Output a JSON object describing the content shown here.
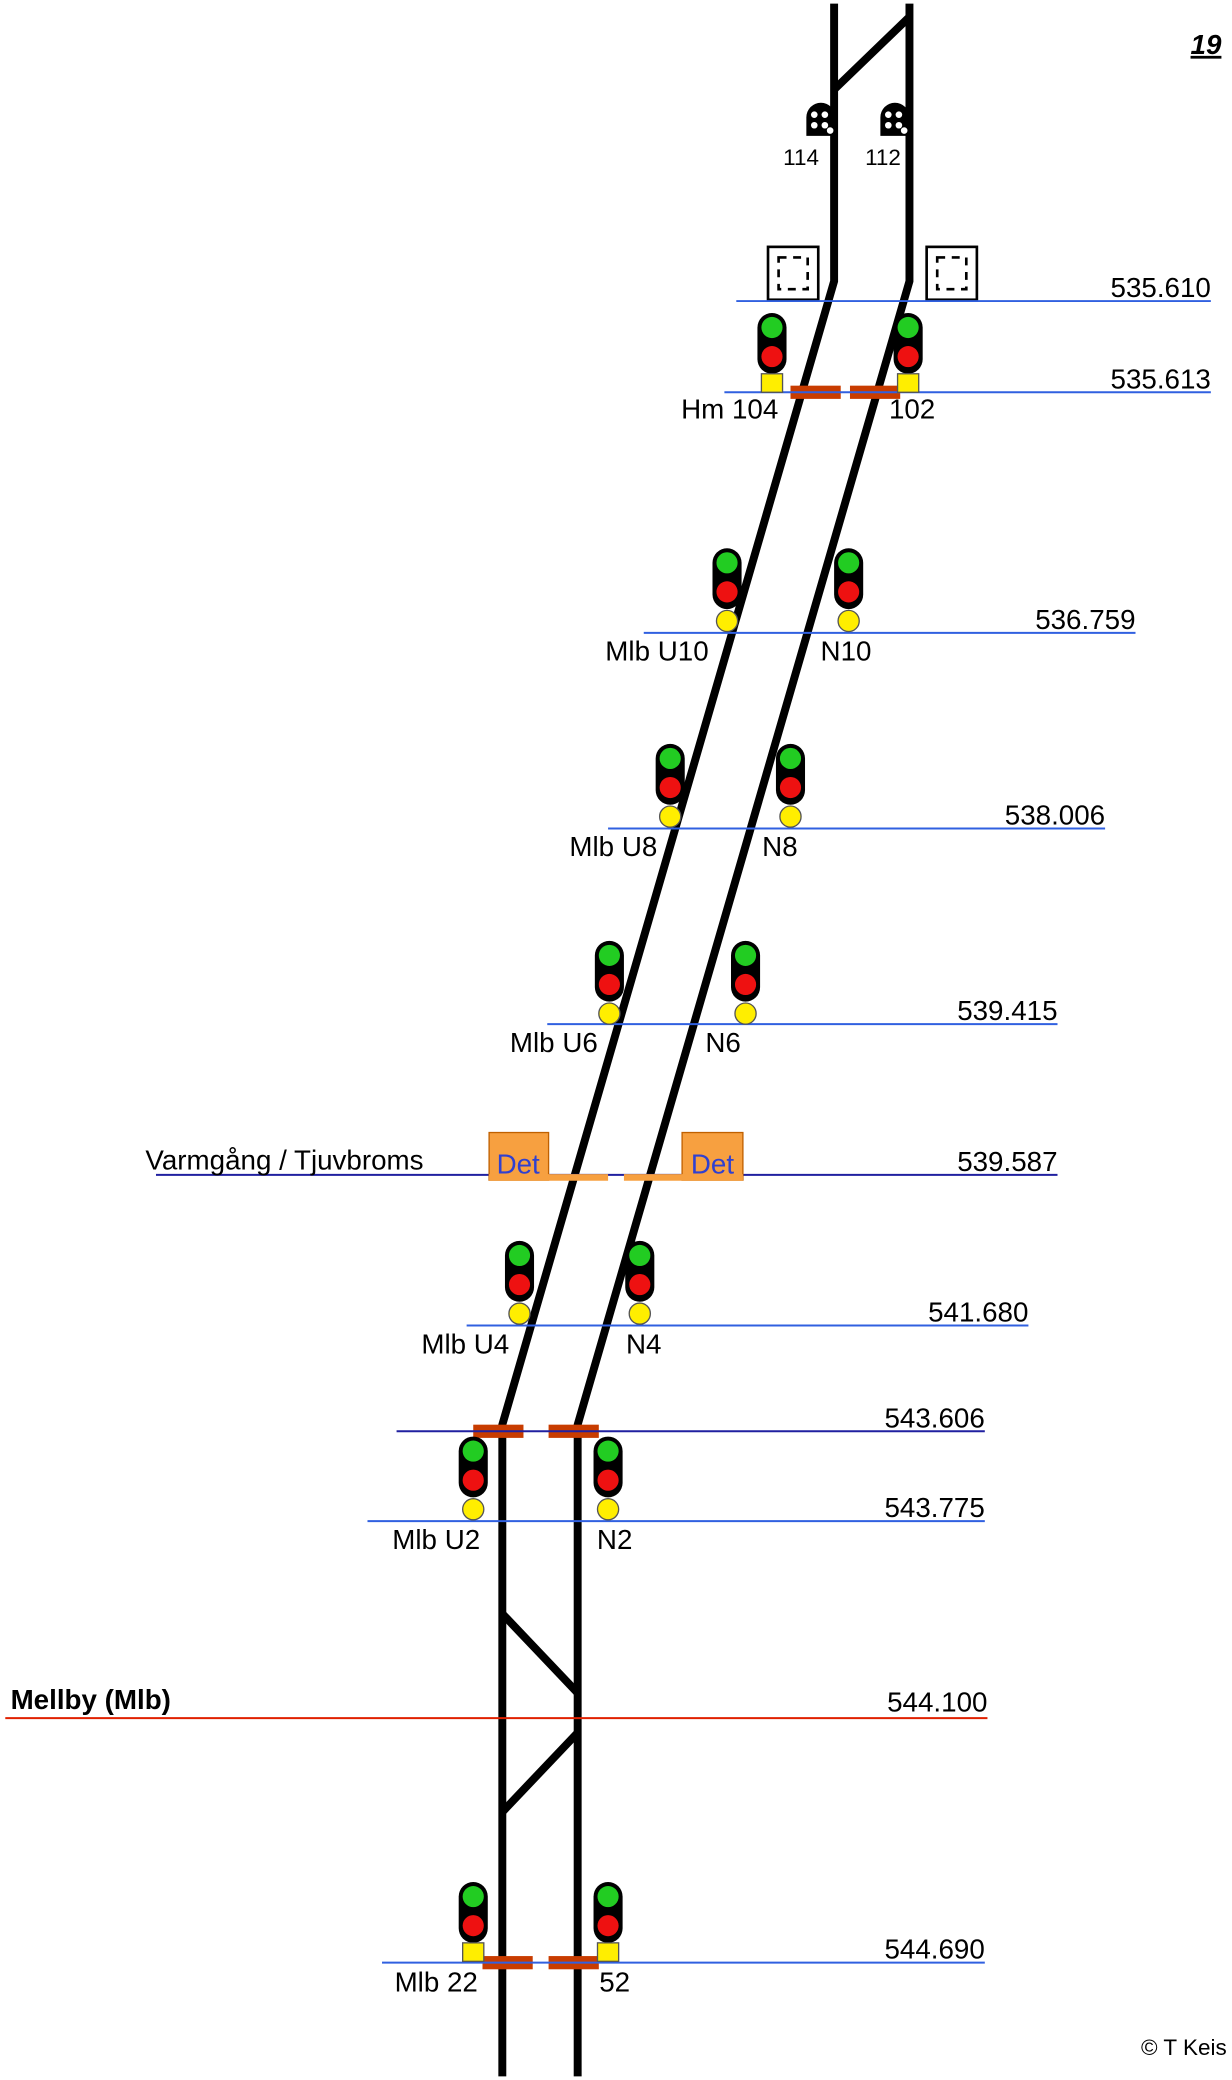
{
  "page_number": "19",
  "copyright": "© T Keis",
  "station": {
    "name": "Mellby (Mlb)",
    "km": "544.100"
  },
  "detector": {
    "label": "Varmgång / Tjuvbroms",
    "boxes": [
      "Det",
      "Det"
    ],
    "km": "539.587"
  },
  "shunt_signals": [
    "114",
    "112"
  ],
  "km_markers": [
    "535.610",
    "535.613",
    "536.759",
    "538.006",
    "539.415",
    "541.680",
    "543.606",
    "543.775",
    "544.690"
  ],
  "signals": [
    "Hm 104",
    "102",
    "Mlb U10",
    "N10",
    "Mlb U8",
    "N8",
    "Mlb U6",
    "N6",
    "Mlb U4",
    "N4",
    "Mlb U2",
    "N2",
    "Mlb 22",
    "52"
  ]
}
